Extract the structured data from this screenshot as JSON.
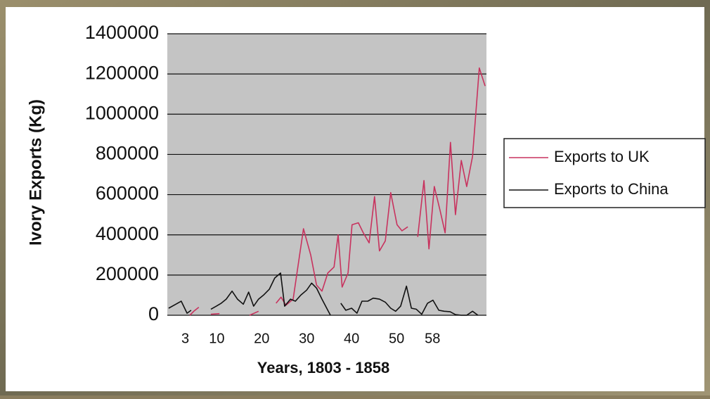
{
  "chart_data": {
    "type": "line",
    "ylabel": "Ivory Exports (Kg)",
    "xlabel": "Years, 1803 - 1858",
    "xlim": [
      -1,
      70
    ],
    "xticks": [
      3,
      10,
      20,
      30,
      40,
      50,
      58
    ],
    "ylim": [
      0,
      1400000
    ],
    "yticks": [
      0,
      200000,
      400000,
      600000,
      800000,
      1000000,
      1200000,
      1400000
    ],
    "grid": true,
    "legend": "right",
    "series": [
      {
        "name": "Exports to UK",
        "color": "#c8325e",
        "x": [
          4.0,
          4.9,
          6.0,
          null,
          8.7,
          10.6,
          null,
          17.3,
          19.3,
          null,
          23.2,
          24.3,
          25.4,
          27.0,
          29.3,
          30.9,
          32.2,
          33.4,
          34.7,
          36.1,
          37.0,
          37.9,
          39.2,
          40.1,
          41.5,
          42.6,
          43.9,
          45.1,
          46.2,
          47.5,
          48.7,
          50.1,
          51.2,
          52.5,
          null,
          54.7,
          56.1,
          57.2,
          58.4,
          59.7,
          60.8,
          62.0,
          63.1,
          64.4,
          65.6,
          66.9,
          68.4,
          69.7
        ],
        "values": [
          0,
          20000,
          40000,
          null,
          5000,
          8000,
          null,
          0,
          20000,
          null,
          60000,
          90000,
          50000,
          80000,
          430000,
          300000,
          150000,
          120000,
          210000,
          240000,
          400000,
          140000,
          210000,
          450000,
          460000,
          410000,
          360000,
          590000,
          320000,
          370000,
          610000,
          450000,
          420000,
          440000,
          null,
          390000,
          670000,
          330000,
          640000,
          520000,
          410000,
          860000,
          500000,
          770000,
          640000,
          790000,
          1230000,
          1140000
        ]
      },
      {
        "name": "Exports to China",
        "color": "#111111",
        "x": [
          -0.7,
          0.9,
          2.1,
          3.4,
          4.3,
          null,
          8.7,
          9.9,
          11.0,
          12.1,
          13.4,
          14.6,
          15.9,
          17.1,
          18.2,
          19.3,
          20.4,
          21.7,
          22.9,
          24.2,
          25.1,
          26.4,
          27.5,
          28.7,
          30.0,
          31.1,
          32.2,
          33.4,
          34.7,
          35.3,
          null,
          37.6,
          38.7,
          40.0,
          41.2,
          42.3,
          43.6,
          44.8,
          46.2,
          47.5,
          48.7,
          49.8,
          50.9,
          52.2,
          53.3,
          54.4,
          55.6,
          56.9,
          58.1,
          59.4,
          60.6,
          61.9,
          63.1,
          64.4,
          65.6,
          66.9,
          68.1
        ],
        "values": [
          35000,
          55000,
          70000,
          10000,
          25000,
          null,
          30000,
          45000,
          60000,
          80000,
          120000,
          80000,
          55000,
          115000,
          45000,
          80000,
          100000,
          130000,
          185000,
          210000,
          45000,
          80000,
          70000,
          100000,
          125000,
          160000,
          135000,
          80000,
          25000,
          0,
          null,
          60000,
          25000,
          35000,
          10000,
          70000,
          70000,
          85000,
          80000,
          65000,
          35000,
          20000,
          45000,
          145000,
          35000,
          30000,
          5000,
          60000,
          75000,
          25000,
          20000,
          18000,
          3000,
          0,
          0,
          20000,
          0
        ]
      }
    ]
  }
}
